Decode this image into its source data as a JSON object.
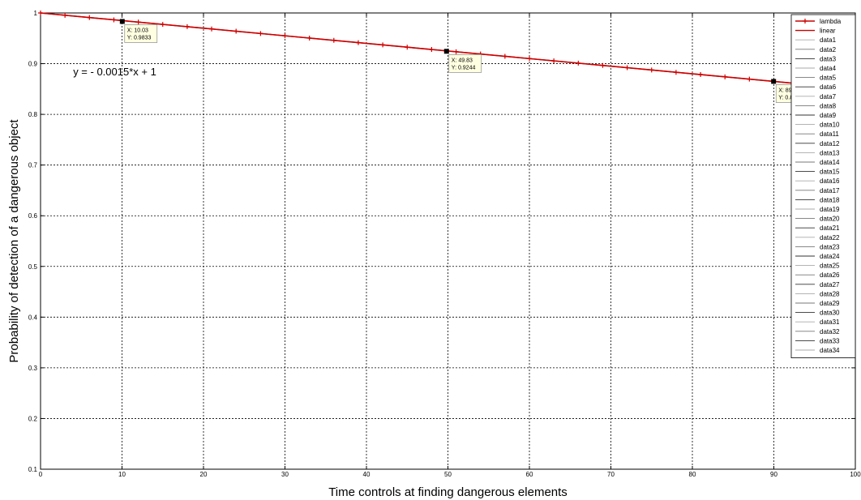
{
  "chart_data": {
    "type": "line",
    "xlabel": "Time controls at finding dangerous elements",
    "ylabel": "Probability of detection of a dangerous object",
    "xlim": [
      0,
      100
    ],
    "ylim": [
      0.1,
      1
    ],
    "xticks": [
      0,
      10,
      20,
      30,
      40,
      50,
      60,
      70,
      80,
      90,
      100
    ],
    "yticks": [
      0.1,
      0.2,
      0.3,
      0.4,
      0.5,
      0.6,
      0.7,
      0.8,
      0.9,
      1
    ],
    "grid": true,
    "legend_position": "top-right",
    "annotation": "y = - 0.0015*x + 1",
    "series": [
      {
        "name": "lambda",
        "color": "#cc0000",
        "marker": "+",
        "x": [
          0,
          3,
          6,
          9,
          12,
          15,
          18,
          21,
          24,
          27,
          30,
          33,
          36,
          39,
          42,
          45,
          48,
          51,
          54,
          57,
          60,
          63,
          66,
          69,
          72,
          75,
          78,
          81,
          84,
          87,
          90,
          93,
          96,
          99
        ],
        "y": [
          1.0,
          0.9955,
          0.991,
          0.9865,
          0.982,
          0.9775,
          0.973,
          0.9685,
          0.964,
          0.9595,
          0.955,
          0.9505,
          0.946,
          0.9415,
          0.937,
          0.9325,
          0.928,
          0.9235,
          0.919,
          0.9145,
          0.91,
          0.9055,
          0.901,
          0.8965,
          0.892,
          0.8875,
          0.883,
          0.8785,
          0.874,
          0.8695,
          0.865,
          0.8605,
          0.856,
          0.8515
        ]
      },
      {
        "name": "linear",
        "color": "#cc0000",
        "x": [
          0,
          100
        ],
        "y": [
          1.0,
          0.85
        ]
      }
    ],
    "legend_extra": [
      "data1",
      "data2",
      "data3",
      "data4",
      "data5",
      "data6",
      "data7",
      "data8",
      "data9",
      "data10",
      "data11",
      "data12",
      "data13",
      "data14",
      "data15",
      "data16",
      "data17",
      "data18",
      "data19",
      "data20",
      "data21",
      "data22",
      "data23",
      "data24",
      "data25",
      "data26",
      "data27",
      "data28",
      "data29",
      "data30",
      "data31",
      "data32",
      "data33",
      "data34"
    ],
    "data_tips": [
      {
        "x": 10.03,
        "y": 0.9833,
        "x_text": "X: 10.03",
        "y_text": "Y: 0.9833"
      },
      {
        "x": 49.83,
        "y": 0.9244,
        "x_text": "X: 49.83",
        "y_text": "Y: 0.9244"
      },
      {
        "x": 89.97,
        "y": 0.865,
        "x_text": "X: 89.97",
        "y_text": "Y: 0.865"
      }
    ]
  }
}
